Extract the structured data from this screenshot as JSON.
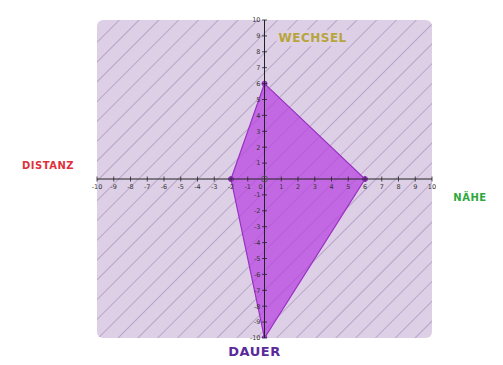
{
  "chart_data": {
    "type": "polygon",
    "x": [
      0,
      6,
      0,
      -2
    ],
    "values": [
      6,
      0,
      -10,
      0
    ],
    "color": "#b845e0",
    "marker": "circle",
    "axis_labels": {
      "top": "WECHSEL",
      "right": "NÄHE",
      "bottom": "DAUER",
      "left": "DISTANZ"
    },
    "xlim": [
      -10,
      10
    ],
    "ylim": [
      -10,
      10
    ],
    "xticks": [
      -10,
      -9,
      -8,
      -7,
      -6,
      -5,
      -4,
      -3,
      -2,
      -1,
      0,
      1,
      2,
      3,
      4,
      5,
      6,
      7,
      8,
      9,
      10
    ],
    "yticks": [
      -10,
      -9,
      -8,
      -7,
      -6,
      -5,
      -4,
      -3,
      -2,
      -1,
      1,
      2,
      3,
      4,
      5,
      6,
      7,
      8,
      9,
      10
    ],
    "grid": false
  }
}
